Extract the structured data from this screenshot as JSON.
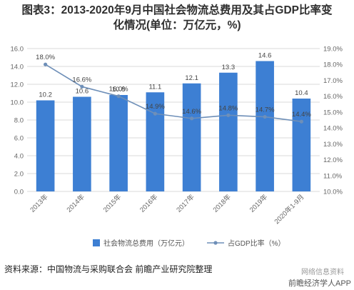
{
  "title": "图表3：2013-2020年9月中国社会物流总费用及其占GDP比率变化情况(单位：万亿元，%)",
  "title_line1": "图表3：2013-2020年9月中国社会物流总费用及其占GDP比率变",
  "title_line2": "化情况(单位：万亿元，%)",
  "source": "资料来源：中国物流与采购联合会 前瞻产业研究院整理",
  "credit_top": "网络信息资料",
  "credit": "前瞻经济学人APP",
  "colors": {
    "bar": "#3d7fd3",
    "line": "#6e8fb8",
    "grid": "#d9d9d9"
  },
  "chart_data": {
    "type": "bar",
    "categories": [
      "2013年",
      "2014年",
      "2015年",
      "2016年",
      "2017年",
      "2018年",
      "2019年",
      "2020年1-9月"
    ],
    "series": [
      {
        "name": "社会物流总费用（万亿元）",
        "type": "bar",
        "axis": "left",
        "values": [
          10.2,
          10.6,
          10.8,
          11.1,
          12.1,
          13.3,
          14.6,
          10.4
        ],
        "labels": [
          "10.2",
          "10.6",
          "10.8",
          "11.1",
          "12.1",
          "13.3",
          "14.6",
          "10.4"
        ]
      },
      {
        "name": "占GDP比率（%）",
        "type": "line",
        "axis": "right",
        "values": [
          18.0,
          16.6,
          16.0,
          14.9,
          14.6,
          14.8,
          14.7,
          14.4
        ],
        "labels": [
          "18.0%",
          "16.6%",
          "16.0%",
          "14.9%",
          "14.6%",
          "14.8%",
          "14.7%",
          "14.4%"
        ]
      }
    ],
    "y_left": {
      "range": [
        0,
        16
      ],
      "ticks": [
        "0.0",
        "2.0",
        "4.0",
        "6.0",
        "8.0",
        "10.0",
        "12.0",
        "14.0",
        "16.0"
      ]
    },
    "y_right": {
      "range": [
        10,
        19
      ],
      "ticks": [
        "10.0%",
        "11.0%",
        "12.0%",
        "13.0%",
        "14.0%",
        "15.0%",
        "16.0%",
        "17.0%",
        "18.0%",
        "19.0%"
      ]
    },
    "grid": true,
    "legend": "bottom"
  }
}
